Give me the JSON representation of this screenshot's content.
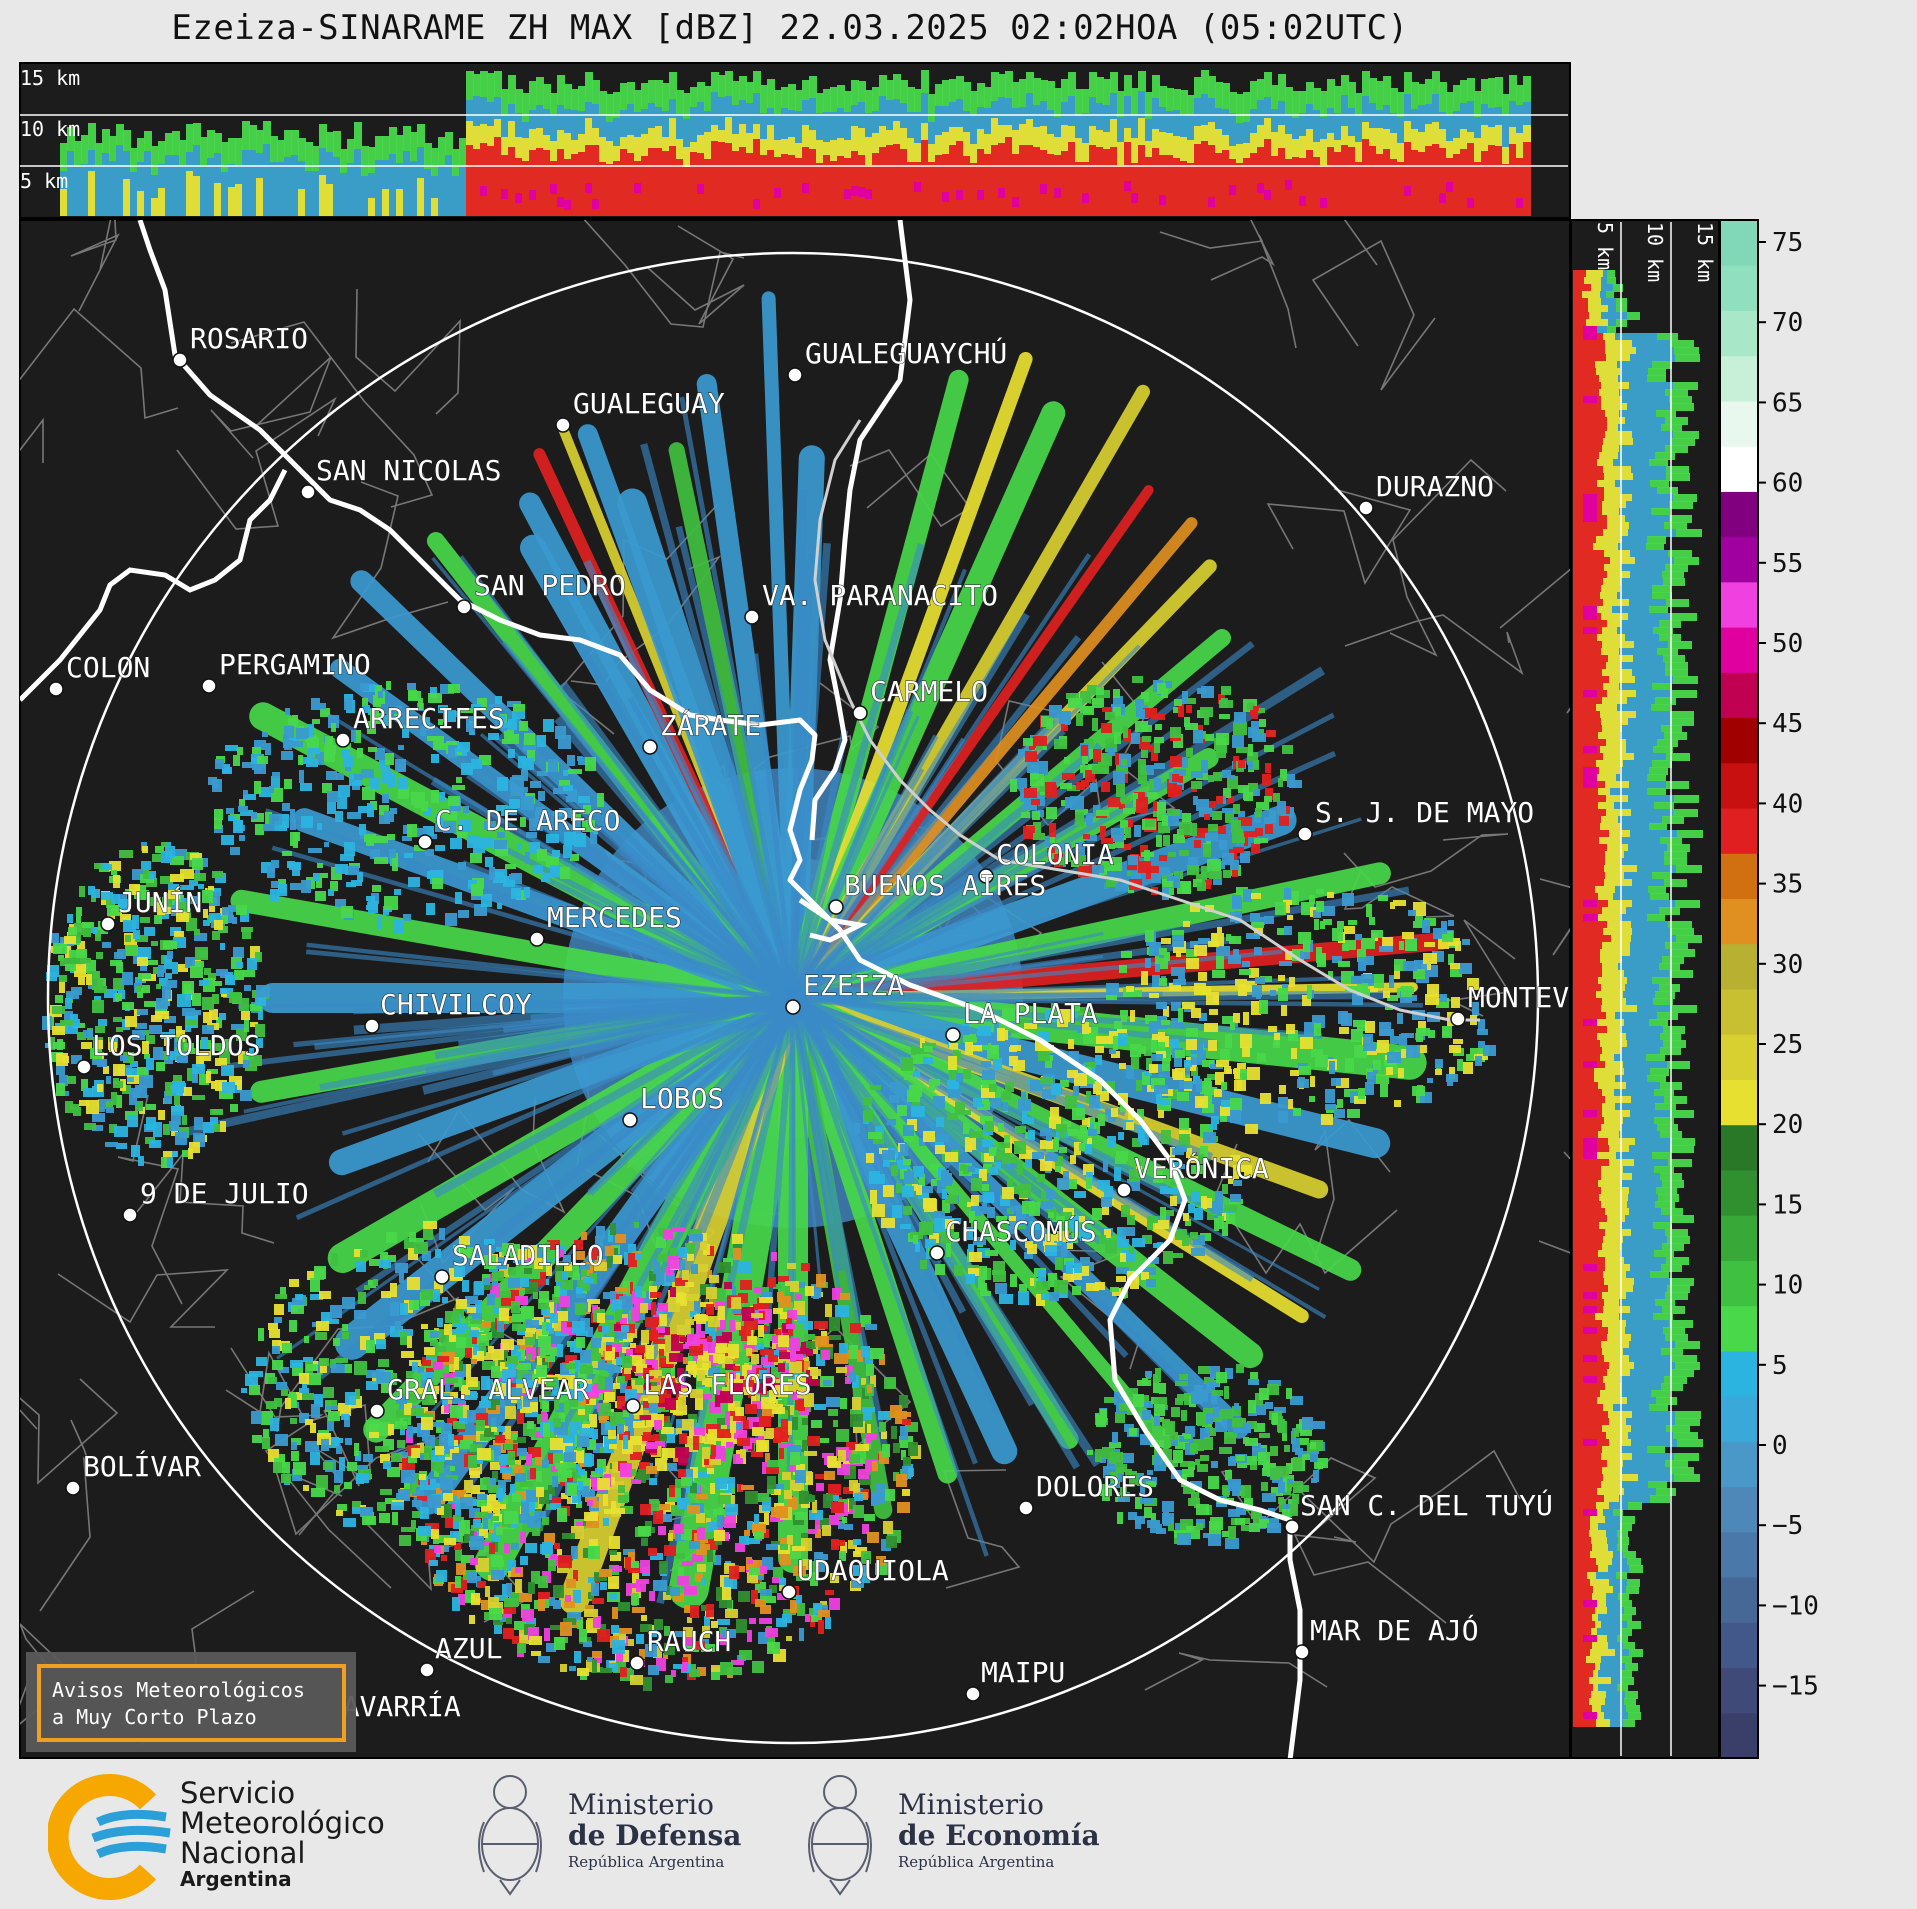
{
  "title": "Ezeiza-SINARAME ZH MAX [dBZ] 22.03.2025 02:02HOA (05:02UTC)",
  "top_panel": {
    "height_labels": [
      "15 km",
      "10 km",
      "5 km"
    ]
  },
  "side_panel": {
    "height_labels": [
      "5 km",
      "10 km",
      "15 km"
    ]
  },
  "colorbar": {
    "ticks": [
      "75",
      "70",
      "65",
      "60",
      "55",
      "50",
      "45",
      "40",
      "35",
      "30",
      "25",
      "20",
      "15",
      "10",
      "5",
      "0",
      "−5",
      "−10",
      "−15"
    ]
  },
  "cities": [
    {
      "name": "ROSARIO"
    },
    {
      "name": "GUALEGUAYCHÚ"
    },
    {
      "name": "GUALEGUAY"
    },
    {
      "name": "SAN NICOLAS"
    },
    {
      "name": "DURAZNO"
    },
    {
      "name": "SAN PEDRO"
    },
    {
      "name": "VA. PARANACITO"
    },
    {
      "name": "COLON"
    },
    {
      "name": "PERGAMINO"
    },
    {
      "name": "CARMELO"
    },
    {
      "name": "ARRECIFES"
    },
    {
      "name": "ZÁRATE"
    },
    {
      "name": "S. J. DE MAYO"
    },
    {
      "name": "C. DE ARECO"
    },
    {
      "name": "COLONIA"
    },
    {
      "name": "JUNÍN"
    },
    {
      "name": "BUENOS AIRES"
    },
    {
      "name": "MERCEDES"
    },
    {
      "name": "EZEIZA"
    },
    {
      "name": "MONTEV"
    },
    {
      "name": "CHIVILCOY"
    },
    {
      "name": "LA PLATA"
    },
    {
      "name": "LOS TOLDOS"
    },
    {
      "name": "LOBOS"
    },
    {
      "name": "VERÓNICA"
    },
    {
      "name": "9 DE JULIO"
    },
    {
      "name": "CHASCOMÚS"
    },
    {
      "name": "SALADILLO"
    },
    {
      "name": "GRAL. ALVEAR"
    },
    {
      "name": "LAS FLORES"
    },
    {
      "name": "BOLÍVAR"
    },
    {
      "name": "DOLORES"
    },
    {
      "name": "SAN C. DEL TUYÚ"
    },
    {
      "name": "UDAQUIOLA"
    },
    {
      "name": "MAR DE AJÓ"
    },
    {
      "name": "AZUL"
    },
    {
      "name": "RAUCH"
    },
    {
      "name": "OLAVARRÍA"
    },
    {
      "name": "MAIPU"
    }
  ],
  "warning_box": {
    "line1": "Avisos Meteorológicos",
    "line2": "a Muy Corto Plazo"
  },
  "footer": {
    "smn": {
      "line1": "Servicio",
      "line2": "Meteorológico",
      "line3": "Nacional",
      "line4": "Argentina"
    },
    "defensa": {
      "line1": "Ministerio",
      "line2": "de Defensa",
      "line3": "República Argentina"
    },
    "economia": {
      "line1": "Ministerio",
      "line2": "de Economía",
      "line3": "República Argentina"
    }
  },
  "colors": {
    "map_background": "#1c1c1c",
    "coast": "#ffffff",
    "borders": "#8a8a8a",
    "warning_border": "#f0a020",
    "smn_orange": "#f6a800",
    "smn_blue": "#2a9fd8"
  }
}
